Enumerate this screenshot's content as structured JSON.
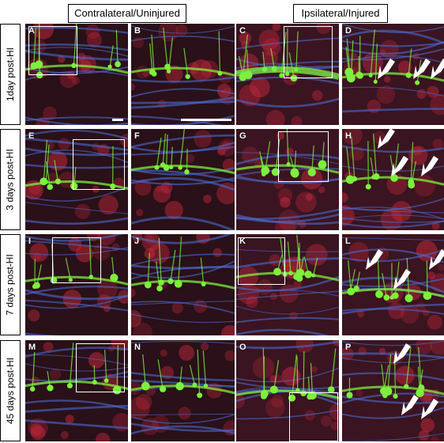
{
  "headers": {
    "contralateral": "Contralateral/Uninjured",
    "ipsilateral": "Ipsilateral/Injured"
  },
  "rows": [
    {
      "label": "1day post-HI",
      "panels": [
        "A",
        "B",
        "C",
        "D"
      ]
    },
    {
      "label": "3 days post-HI",
      "panels": [
        "E",
        "F",
        "G",
        "H"
      ]
    },
    {
      "label": "7 days post-HI",
      "panels": [
        "I",
        "J",
        "K",
        "L"
      ]
    },
    {
      "label": "45 days post-HI",
      "panels": [
        "M",
        "N",
        "O",
        "P"
      ]
    }
  ],
  "channel_colors": {
    "green": "#7cf03c",
    "red": "#c0283a",
    "blue": "#4a6ad0"
  }
}
